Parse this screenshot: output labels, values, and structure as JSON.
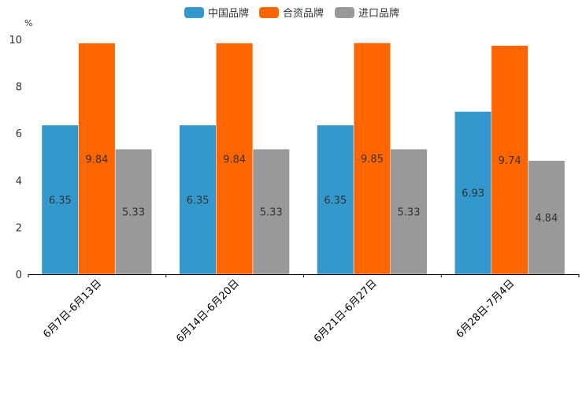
{
  "chart_data": {
    "type": "bar",
    "title": "",
    "xlabel": "",
    "ylabel": "%",
    "ylim": [
      0,
      10
    ],
    "yticks": [
      0,
      2,
      4,
      6,
      8,
      10
    ],
    "grid": false,
    "legend_position": "top-center",
    "categories": [
      "6月7日-6月13日",
      "6月14日-6月20日",
      "6月21日-6月27日",
      "6月28日-7月4日"
    ],
    "series": [
      {
        "name": "中国品牌",
        "color": "#3398cc",
        "values": [
          6.35,
          6.35,
          6.35,
          6.93
        ]
      },
      {
        "name": "合资品牌",
        "color": "#ff6600",
        "values": [
          9.84,
          9.84,
          9.85,
          9.74
        ]
      },
      {
        "name": "进口品牌",
        "color": "#999999",
        "values": [
          5.33,
          5.33,
          5.33,
          4.84
        ]
      }
    ]
  }
}
